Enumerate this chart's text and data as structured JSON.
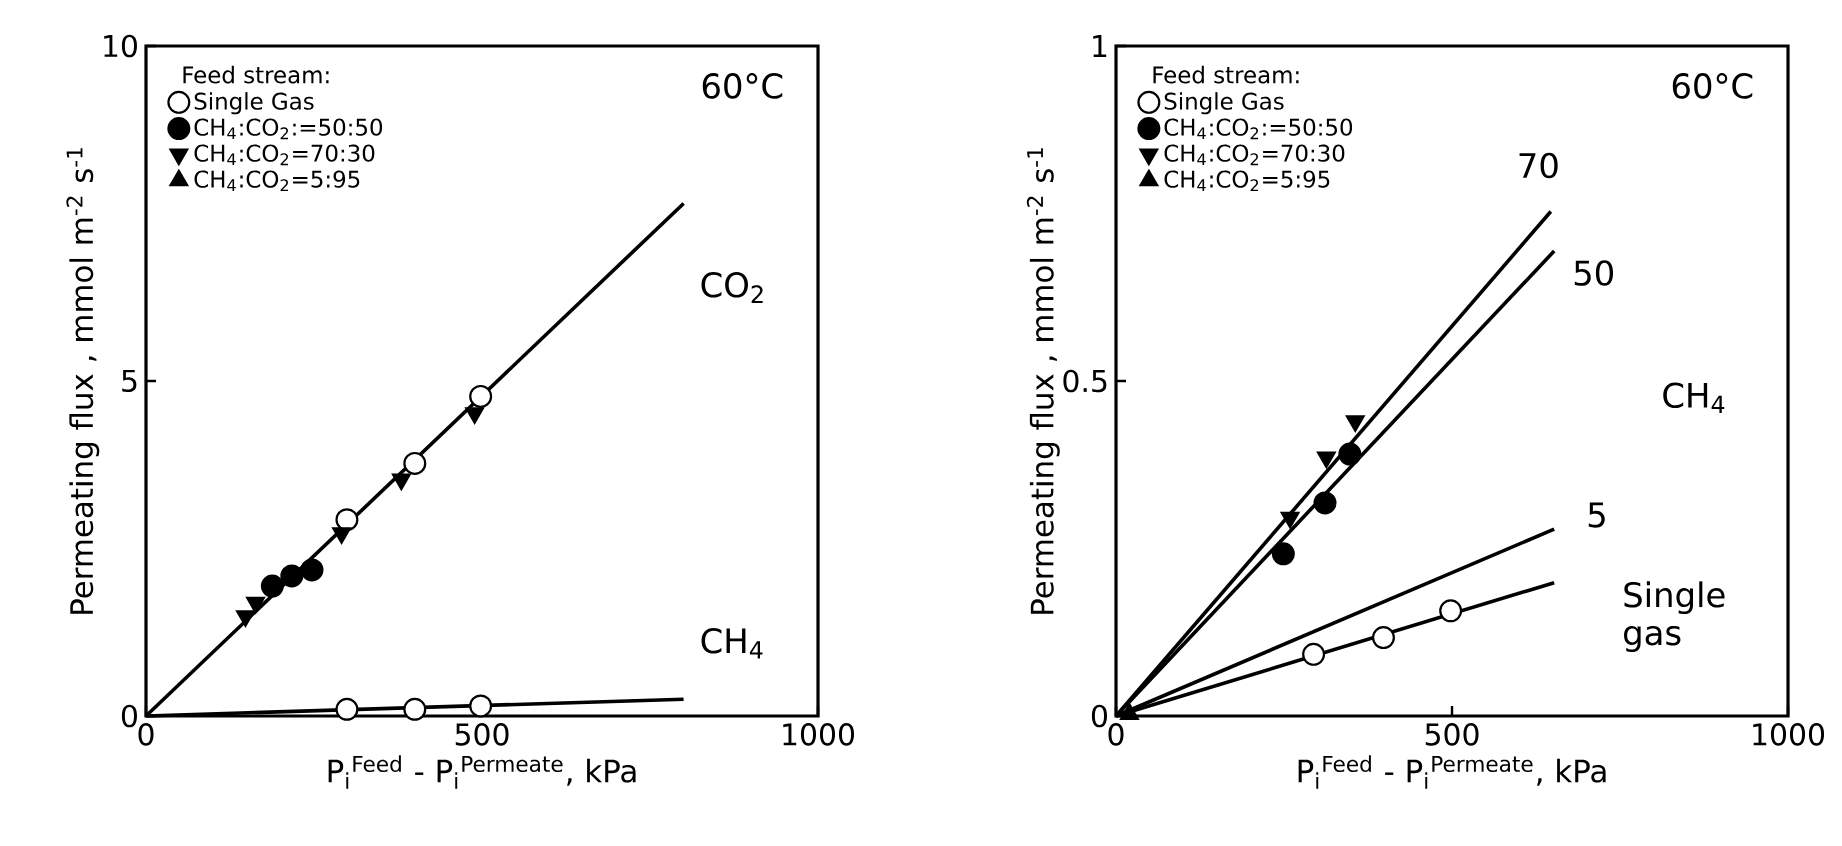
{
  "chart_data": [
    {
      "type": "scatter",
      "xlabel": "P$_{i}$$^{Feed}$ - P$_{i}$$^{Permeate}$, kPa",
      "ylabel": "Permeating flux , mmol m$^{-2}$ s$^{-1}$",
      "legend_title": "Feed stream:",
      "legend": "top left",
      "xlim": [
        0,
        1000
      ],
      "ylim": [
        0,
        10
      ],
      "xticks": [
        0,
        500,
        1000
      ],
      "yticks": [
        0,
        5,
        10
      ],
      "annotations": [
        "60°C"
      ],
      "series": [
        {
          "type": "line",
          "name": "CO$_{2}$",
          "color": "#000000",
          "x": [
            0,
            800
          ],
          "values": [
            0,
            7.65
          ]
        },
        {
          "type": "line",
          "name": "CH$_{4}$",
          "color": "#000000",
          "x": [
            0,
            800
          ],
          "values": [
            0,
            0.25
          ]
        },
        {
          "name": "Single Gas",
          "marker": "circle",
          "color": "#ffffff",
          "x": [
            299,
            400,
            498,
            299,
            400,
            498
          ],
          "values": [
            2.93,
            3.77,
            4.77,
            0.1,
            0.1,
            0.15
          ]
        },
        {
          "name": "CH$_{4}$:CO$_{2}$:=50:50",
          "marker": "circle",
          "color": "#000000",
          "x": [
            188,
            217,
            247
          ],
          "values": [
            1.94,
            2.09,
            2.18
          ]
        },
        {
          "name": "CH$_{4}$:CO$_{2}$=70:30",
          "marker": "triangle",
          "color": "#000000",
          "x": [
            148,
            163,
            291,
            380,
            489
          ],
          "values": [
            1.49,
            1.69,
            2.73,
            3.53,
            4.52
          ]
        },
        {
          "name": "CH$_{4}$:CO$_{2}$=5:95",
          "marker": "triangle",
          "color": "#000000"
        }
      ]
    },
    {
      "type": "scatter",
      "xlabel": "P$_{i}$$^{Feed}$ - P$_{i}$$^{Permeate}$, kPa",
      "ylabel": "Permeating flux , mmol m$^{-2}$ s$^{-1}$",
      "legend_title": "Feed stream:",
      "legend": "top left",
      "xlim": [
        0,
        1000
      ],
      "ylim": [
        0,
        1
      ],
      "xticks": [
        0,
        500,
        1000
      ],
      "yticks": [
        0,
        0.5,
        1
      ],
      "annotations": [
        "60°C",
        "CH$_{4}$"
      ],
      "series": [
        {
          "type": "line",
          "name": "70",
          "color": "#000000",
          "x": [
            0,
            647
          ],
          "values": [
            0,
            0.753
          ]
        },
        {
          "type": "line",
          "name": "50",
          "color": "#000000",
          "x": [
            0,
            652
          ],
          "values": [
            0,
            0.694
          ]
        },
        {
          "type": "line",
          "name": "5",
          "color": "#000000",
          "x": [
            0,
            652
          ],
          "values": [
            0,
            0.279
          ]
        },
        {
          "type": "line",
          "name": "Single gas",
          "color": "#000000",
          "x": [
            0,
            652
          ],
          "values": [
            0,
            0.199
          ]
        },
        {
          "name": "Single Gas",
          "marker": "circle",
          "color": "#ffffff",
          "x": [
            294,
            398,
            498
          ],
          "values": [
            0.092,
            0.117,
            0.157
          ]
        },
        {
          "name": "CH$_{4}$:CO$_{2}$:=50:50",
          "marker": "circle",
          "color": "#000000",
          "x": [
            249,
            311,
            348
          ],
          "values": [
            0.242,
            0.318,
            0.391
          ]
        },
        {
          "name": "CH$_{4}$:CO$_{2}$=70:30",
          "marker": "triangle",
          "color": "#000000",
          "x": [
            259,
            313,
            356
          ],
          "values": [
            0.296,
            0.386,
            0.44
          ]
        },
        {
          "name": "CH$_{4}$:CO$_{2}$=5:95",
          "marker": "triangle",
          "color": "#000000",
          "x": [
            20
          ],
          "values": [
            0.003
          ]
        }
      ]
    }
  ]
}
